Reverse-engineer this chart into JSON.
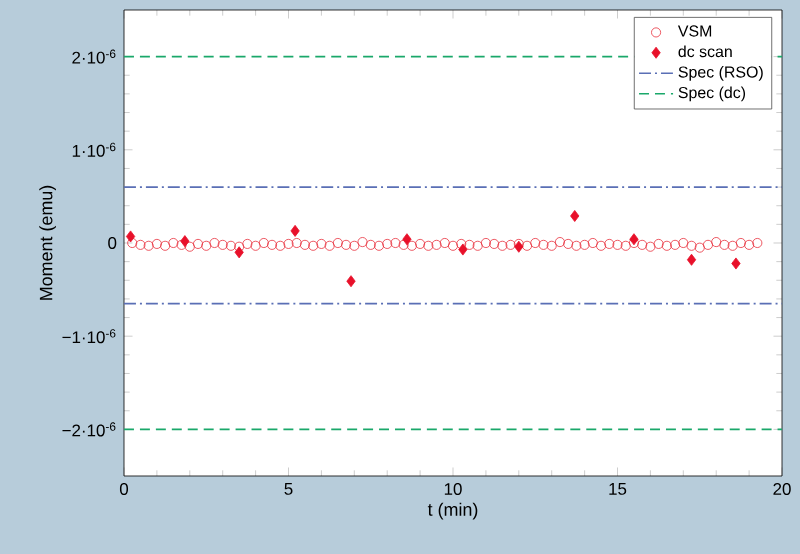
{
  "chart_data": {
    "type": "scatter",
    "xlabel": "t (min)",
    "ylabel": "Moment (emu)",
    "xlim": [
      0,
      20
    ],
    "ylim": [
      -2.5e-06,
      2.5e-06
    ],
    "xticks": [
      0,
      5,
      10,
      15,
      20
    ],
    "yticks": [
      {
        "value": -2e-06,
        "label": "−2·10$^{-6}$"
      },
      {
        "value": -1e-06,
        "label": "−1·10$^{-6}$"
      },
      {
        "value": 0,
        "label": "0"
      },
      {
        "value": 1e-06,
        "label": "1·10$^{-6}$"
      },
      {
        "value": 2e-06,
        "label": "2·10$^{-6}$"
      }
    ],
    "grid": false,
    "legend": "top right",
    "series": [
      {
        "name": "VSM",
        "marker": "circle",
        "color": "#e8303c",
        "x": [
          0.25,
          0.5,
          0.75,
          1,
          1.25,
          1.5,
          1.75,
          2,
          2.25,
          2.5,
          2.75,
          3,
          3.25,
          3.5,
          3.75,
          4,
          4.25,
          4.5,
          4.75,
          5,
          5.25,
          5.5,
          5.75,
          6,
          6.25,
          6.5,
          6.75,
          7,
          7.25,
          7.5,
          7.75,
          8,
          8.25,
          8.5,
          8.75,
          9,
          9.25,
          9.5,
          9.75,
          10,
          10.25,
          10.5,
          10.75,
          11,
          11.25,
          11.5,
          11.75,
          12,
          12.25,
          12.5,
          12.75,
          13,
          13.25,
          13.5,
          13.75,
          14,
          14.25,
          14.5,
          14.75,
          15,
          15.25,
          15.5,
          15.75,
          16,
          16.25,
          16.5,
          16.75,
          17,
          17.25,
          17.5,
          17.75,
          18,
          18.25,
          18.5,
          18.75,
          19,
          19.25
        ],
        "values": [
          0,
          -2e-08,
          -3e-08,
          -1e-08,
          -3e-08,
          0,
          -2e-08,
          -4e-08,
          -1e-08,
          -3e-08,
          0,
          -2e-08,
          -3e-08,
          -4e-08,
          -1e-08,
          -3e-08,
          0,
          -2e-08,
          -3e-08,
          -1e-08,
          0,
          -2e-08,
          -3e-08,
          -1e-08,
          -3e-08,
          0,
          -2e-08,
          -3e-08,
          1e-08,
          -2e-08,
          -3e-08,
          -1e-08,
          0,
          -2e-08,
          -3e-08,
          -1e-08,
          -3e-08,
          -2e-08,
          0,
          -3e-08,
          -1e-08,
          -2e-08,
          -3e-08,
          0,
          -1e-08,
          -3e-08,
          -2e-08,
          -1e-08,
          -3e-08,
          0,
          -2e-08,
          -3e-08,
          1e-08,
          -1e-08,
          -3e-08,
          -2e-08,
          0,
          -3e-08,
          -1e-08,
          -2e-08,
          -3e-08,
          0,
          -2e-08,
          -4e-08,
          -1e-08,
          -3e-08,
          -2e-08,
          0,
          -3e-08,
          -5e-08,
          -2e-08,
          1e-08,
          -2e-08,
          -3e-08,
          0,
          -2e-08,
          0
        ]
      },
      {
        "name": "dc scan",
        "marker": "diamond",
        "color": "#e8102a",
        "x": [
          0.2,
          1.85,
          3.5,
          5.2,
          6.9,
          8.6,
          10.3,
          12.0,
          13.7,
          15.5,
          17.25,
          18.6
        ],
        "values": [
          7e-08,
          2e-08,
          -1e-07,
          1.3e-07,
          -4.1e-07,
          4e-08,
          -7e-08,
          -4e-08,
          2.9e-07,
          4e-08,
          -1.8e-07,
          -2.2e-07
        ]
      },
      {
        "name": "Spec (RSO)",
        "type": "line",
        "line_style": "dashdot",
        "color": "#5a6fb5",
        "x": [
          0,
          20
        ],
        "values": [
          6e-07,
          6e-07
        ]
      },
      {
        "name": "Spec (dc)",
        "type": "line",
        "line_style": "dashed",
        "color": "#1aa86a",
        "x": [
          0,
          20
        ],
        "values": [
          2e-06,
          2e-06
        ]
      },
      {
        "type": "line",
        "line_style": "dashdot",
        "color": "#5a6fb5",
        "x": [
          0,
          20
        ],
        "values": [
          -6.5e-07,
          -6.5e-07
        ]
      },
      {
        "type": "line",
        "line_style": "dashed",
        "color": "#1aa86a",
        "x": [
          0,
          20
        ],
        "values": [
          -2e-06,
          -2e-06
        ]
      }
    ]
  }
}
